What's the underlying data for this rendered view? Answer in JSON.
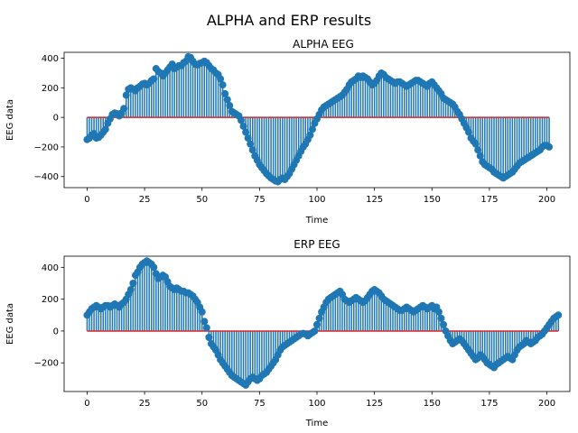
{
  "figure": {
    "title": "ALPHA and ERP results"
  },
  "chart_data": [
    {
      "type": "stem",
      "title": "ALPHA EEG",
      "xlabel": "Time",
      "ylabel": "EEG data",
      "xlim": [
        -10,
        210
      ],
      "ylim": [
        -475,
        440
      ],
      "xticks": [
        0,
        25,
        50,
        75,
        100,
        125,
        150,
        175,
        200
      ],
      "yticks": [
        -400,
        -200,
        0,
        200,
        400
      ],
      "marker_color": "#1f77b4",
      "baseline_color": "#d62728",
      "values": [
        -150,
        -140,
        -120,
        -110,
        -140,
        -135,
        -120,
        -100,
        -80,
        -40,
        -10,
        20,
        30,
        25,
        10,
        30,
        60,
        150,
        190,
        200,
        190,
        180,
        200,
        210,
        225,
        230,
        220,
        230,
        250,
        260,
        330,
        310,
        300,
        280,
        300,
        320,
        340,
        360,
        330,
        340,
        350,
        350,
        370,
        380,
        410,
        405,
        380,
        360,
        355,
        365,
        370,
        380,
        370,
        350,
        330,
        320,
        300,
        290,
        260,
        220,
        160,
        120,
        80,
        40,
        30,
        20,
        10,
        -20,
        -60,
        -100,
        -140,
        -180,
        -220,
        -260,
        -290,
        -320,
        -340,
        -360,
        -380,
        -395,
        -410,
        -420,
        -430,
        -435,
        -420,
        -410,
        -420,
        -400,
        -380,
        -350,
        -320,
        -290,
        -260,
        -230,
        -200,
        -180,
        -150,
        -120,
        -80,
        -40,
        -10,
        20,
        50,
        70,
        80,
        90,
        100,
        110,
        120,
        130,
        140,
        150,
        170,
        190,
        220,
        240,
        250,
        260,
        280,
        270,
        280,
        270,
        260,
        240,
        220,
        230,
        250,
        280,
        300,
        290,
        270,
        260,
        250,
        240,
        230,
        240,
        240,
        230,
        220,
        210,
        220,
        230,
        240,
        250,
        250,
        240,
        230,
        220,
        210,
        230,
        240,
        220,
        200,
        180,
        160,
        130,
        120,
        110,
        100,
        90,
        70,
        40,
        20,
        -10,
        -40,
        -70,
        -100,
        -140,
        -160,
        -180,
        -220,
        -260,
        -300,
        -320,
        -330,
        -340,
        -350,
        -370,
        -380,
        -390,
        -400,
        -410,
        -400,
        -390,
        -380,
        -370,
        -350,
        -330,
        -310,
        -300,
        -290,
        -280,
        -270,
        -260,
        -250,
        -240,
        -230,
        -220,
        -200,
        -190,
        -190,
        -200
      ]
    },
    {
      "type": "stem",
      "title": "ERP EEG",
      "xlabel": "Time",
      "ylabel": "EEG data",
      "xlim": [
        -10,
        210
      ],
      "ylim": [
        -380,
        470
      ],
      "xticks": [
        0,
        25,
        50,
        75,
        100,
        125,
        150,
        175,
        200
      ],
      "yticks": [
        -200,
        0,
        200,
        400
      ],
      "marker_color": "#1f77b4",
      "baseline_color": "#d62728",
      "values": [
        100,
        120,
        140,
        150,
        160,
        150,
        140,
        150,
        160,
        160,
        150,
        160,
        170,
        160,
        150,
        170,
        180,
        200,
        230,
        260,
        300,
        350,
        370,
        400,
        420,
        430,
        440,
        430,
        420,
        400,
        360,
        330,
        340,
        350,
        340,
        310,
        280,
        270,
        260,
        270,
        260,
        250,
        250,
        240,
        240,
        230,
        220,
        200,
        180,
        150,
        120,
        60,
        20,
        -40,
        -80,
        -100,
        -120,
        -150,
        -180,
        -200,
        -220,
        -240,
        -260,
        -280,
        -290,
        -300,
        -310,
        -320,
        -330,
        -340,
        -320,
        -300,
        -290,
        -300,
        -310,
        -300,
        -280,
        -270,
        -260,
        -240,
        -220,
        -200,
        -180,
        -150,
        -120,
        -100,
        -90,
        -80,
        -70,
        -60,
        -50,
        -40,
        -30,
        -20,
        -15,
        -20,
        -30,
        -20,
        -10,
        0,
        40,
        80,
        120,
        150,
        180,
        200,
        210,
        220,
        230,
        240,
        250,
        230,
        200,
        190,
        180,
        190,
        200,
        210,
        200,
        190,
        180,
        190,
        210,
        230,
        250,
        260,
        250,
        240,
        220,
        200,
        190,
        180,
        170,
        160,
        150,
        140,
        130,
        130,
        140,
        150,
        140,
        130,
        120,
        130,
        140,
        150,
        160,
        150,
        140,
        150,
        160,
        140,
        150,
        120,
        80,
        40,
        0,
        -30,
        -60,
        -80,
        -70,
        -60,
        -50,
        -60,
        -80,
        -100,
        -120,
        -140,
        -160,
        -180,
        -170,
        -150,
        -160,
        -180,
        -200,
        -210,
        -220,
        -230,
        -210,
        -200,
        -190,
        -180,
        -170,
        -160,
        -170,
        -180,
        -150,
        -120,
        -100,
        -90,
        -80,
        -60,
        -70,
        -80,
        -70,
        -60,
        -40,
        -30,
        -20,
        0,
        20,
        40,
        60,
        80,
        90,
        100
      ]
    }
  ]
}
